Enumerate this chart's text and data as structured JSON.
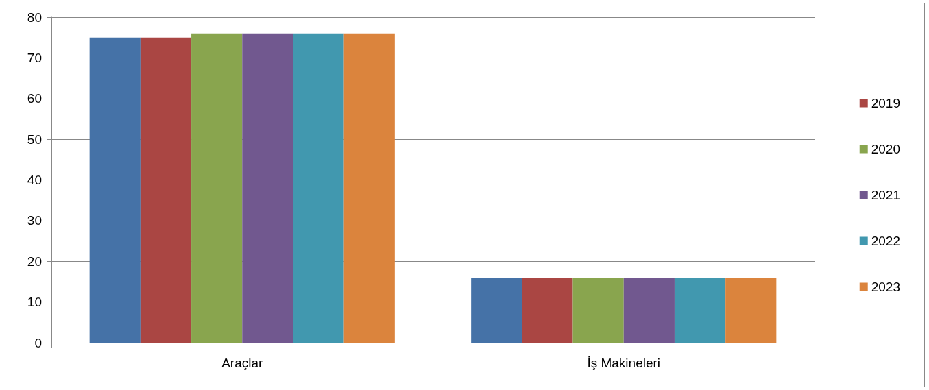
{
  "chart_data": {
    "type": "bar",
    "categories": [
      "Araçlar",
      "İş Makineleri"
    ],
    "series": [
      {
        "color": "#4572a7",
        "values": [
          75,
          16
        ]
      },
      {
        "name": "2019",
        "color": "#aa4643",
        "values": [
          75,
          16
        ]
      },
      {
        "name": "2020",
        "color": "#89a54e",
        "values": [
          76,
          16
        ]
      },
      {
        "name": "2021",
        "color": "#71588f",
        "values": [
          76,
          16
        ]
      },
      {
        "name": "2022",
        "color": "#4198af",
        "values": [
          76,
          16
        ]
      },
      {
        "name": "2023",
        "color": "#db843d",
        "values": [
          76,
          16
        ]
      }
    ],
    "ylim": [
      0,
      80
    ],
    "yticks": [
      0,
      10,
      20,
      30,
      40,
      50,
      60,
      70,
      80
    ],
    "grid": "y",
    "legend": "right"
  }
}
